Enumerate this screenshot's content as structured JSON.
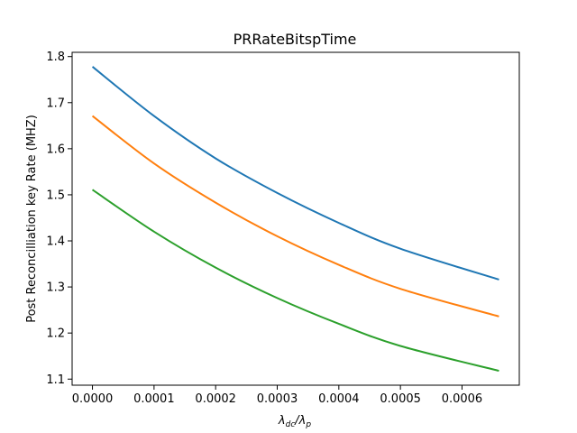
{
  "chart_data": {
    "type": "line",
    "title": "PRRateBitspTime",
    "xlabel_main": "λ",
    "xlabel_sub1": "dc",
    "xlabel_slash": "/λ",
    "xlabel_sub2": "p",
    "ylabel": "Post Reconcilliation key Rate (MHZ)",
    "xlim": [
      -3.3e-05,
      0.000693
    ],
    "ylim": [
      1.0868,
      1.8092
    ],
    "x_ticks": [
      0.0,
      0.0001,
      0.0002,
      0.0003,
      0.0004,
      0.0005,
      0.0006
    ],
    "x_tick_labels": [
      "0.0000",
      "0.0001",
      "0.0002",
      "0.0003",
      "0.0004",
      "0.0005",
      "0.0006"
    ],
    "y_ticks": [
      1.1,
      1.2,
      1.3,
      1.4,
      1.5,
      1.6,
      1.7,
      1.8
    ],
    "y_tick_labels": [
      "1.1",
      "1.2",
      "1.3",
      "1.4",
      "1.5",
      "1.6",
      "1.7",
      "1.8"
    ],
    "grid": false,
    "x": [
      0.0,
      0.0001,
      0.0002,
      0.0003,
      0.0004,
      0.0005,
      0.00066
    ],
    "series": [
      {
        "color": "#1f77b4",
        "values": [
          1.778,
          1.671,
          1.579,
          1.504,
          1.439,
          1.383,
          1.316
        ]
      },
      {
        "color": "#ff7f0e",
        "values": [
          1.671,
          1.568,
          1.483,
          1.41,
          1.348,
          1.296,
          1.236
        ]
      },
      {
        "color": "#2ca02c",
        "values": [
          1.511,
          1.42,
          1.342,
          1.276,
          1.22,
          1.172,
          1.118
        ]
      }
    ]
  }
}
